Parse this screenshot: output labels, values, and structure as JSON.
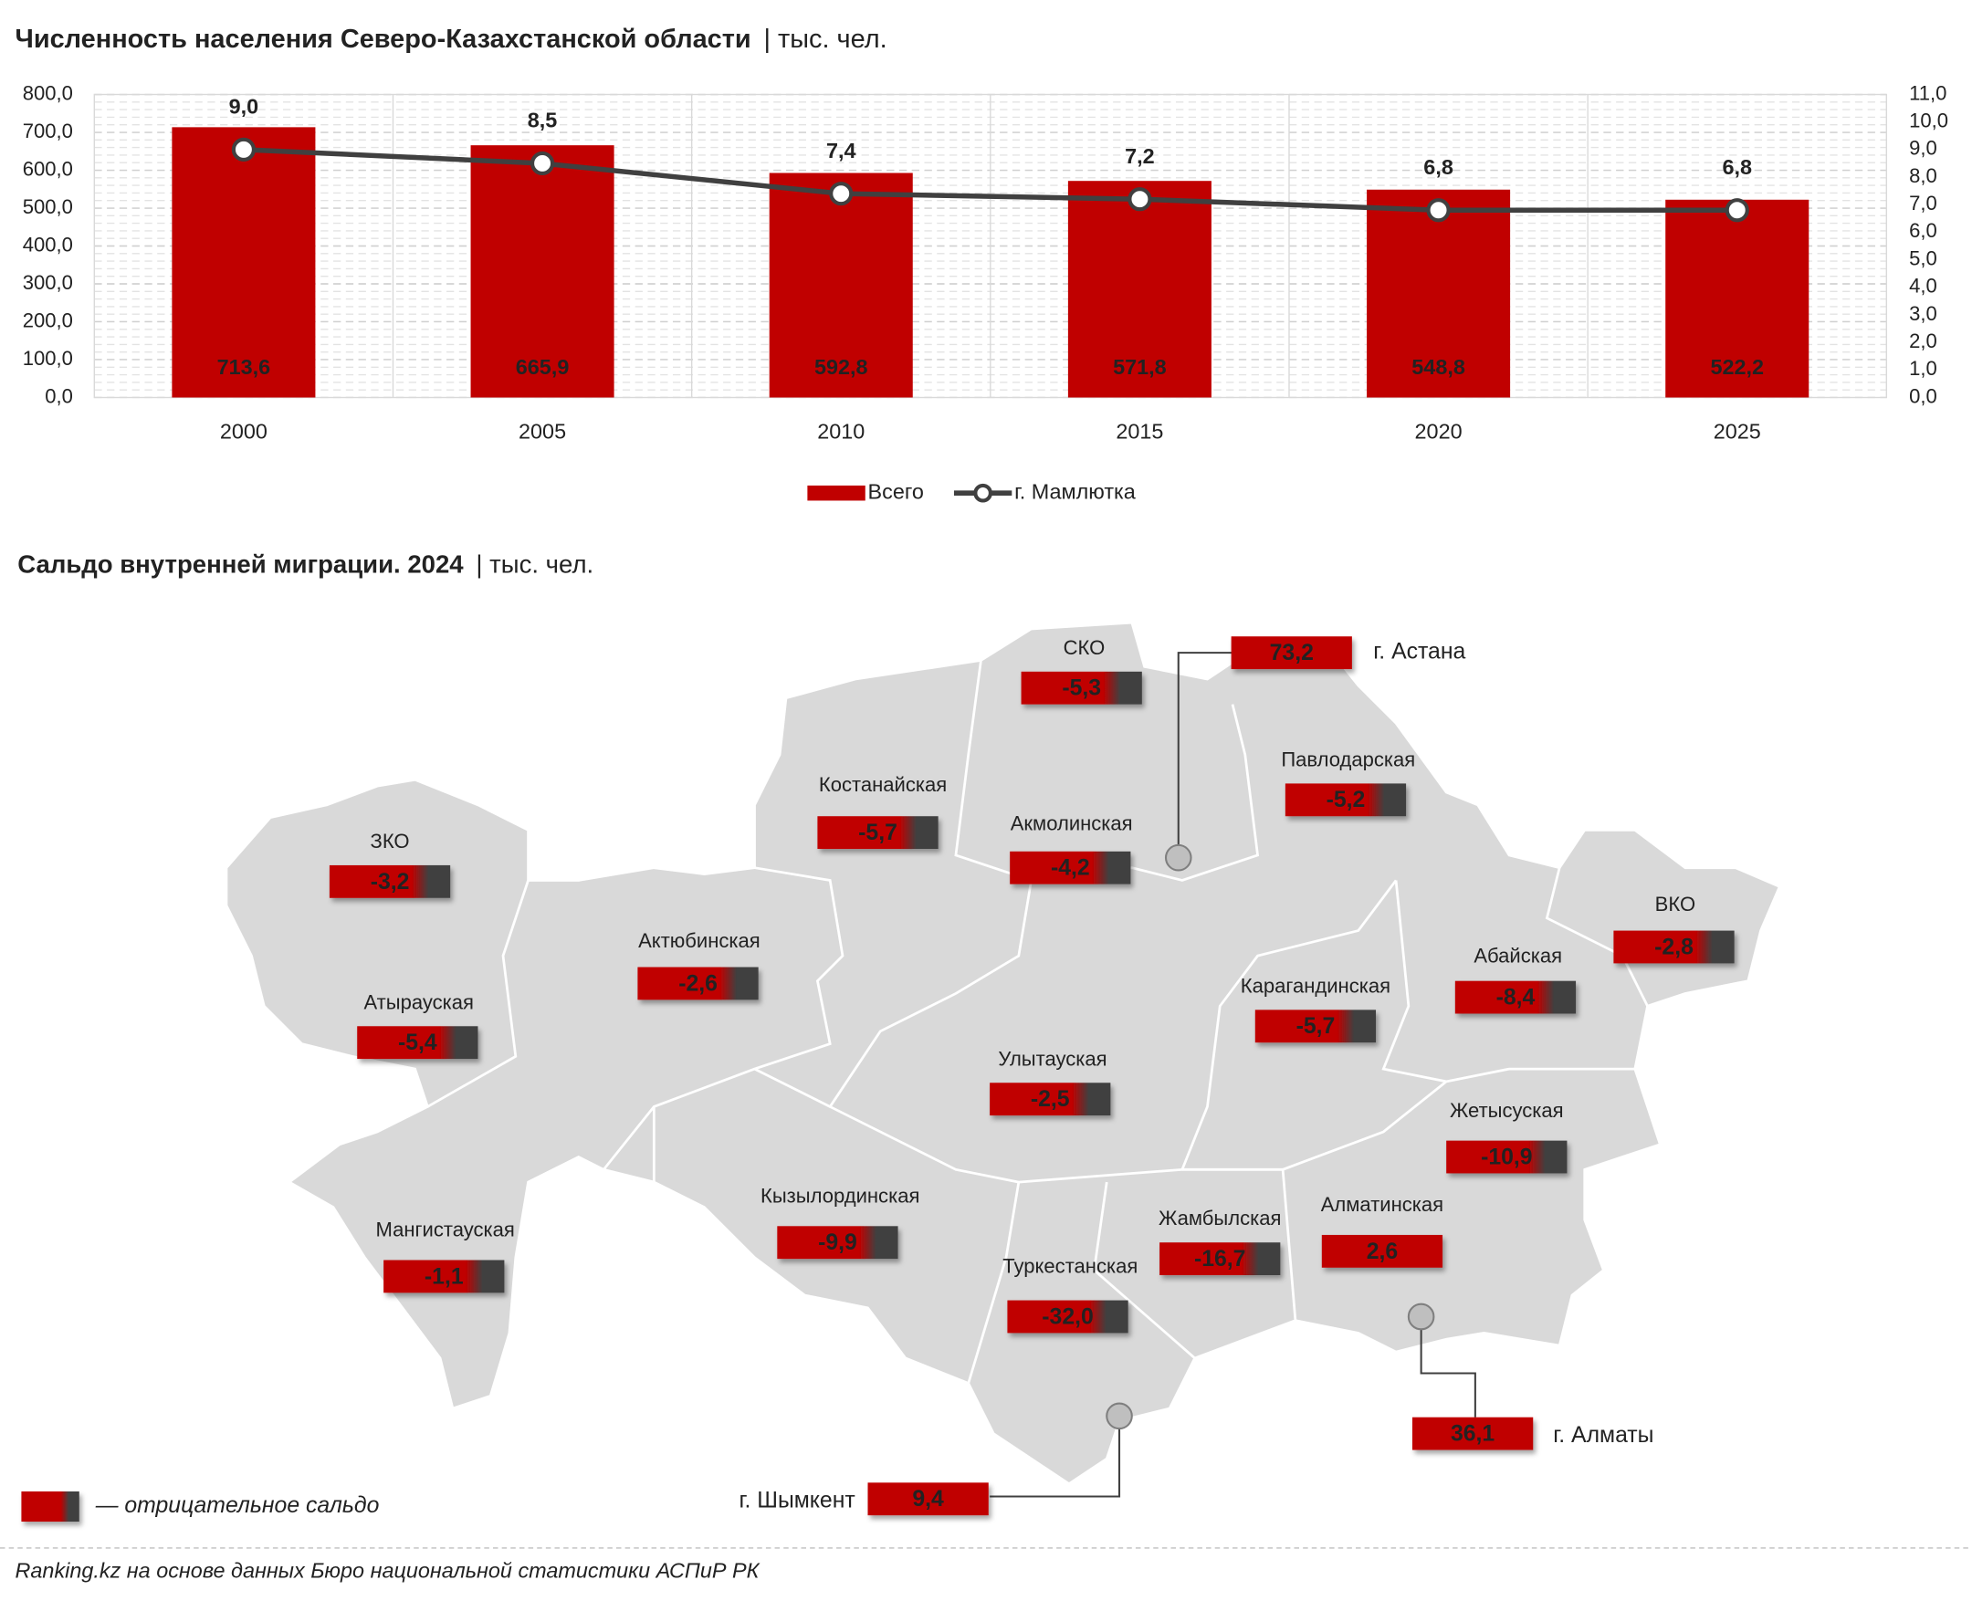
{
  "chart_data": [
    {
      "type": "bar",
      "title": "Численность населения Северо-Казахстанской области",
      "unit": "| тыс. чел.",
      "categories": [
        "2000",
        "2005",
        "2010",
        "2015",
        "2020",
        "2025"
      ],
      "series": [
        {
          "name": "Всего",
          "type": "bar",
          "color": "#c00000",
          "values": [
            713.6,
            665.9,
            592.8,
            571.8,
            548.8,
            522.2
          ],
          "value_labels": [
            "713,6",
            "665,9",
            "592,8",
            "571,8",
            "548,8",
            "522,2"
          ]
        },
        {
          "name": "г. Мамлютка",
          "type": "line",
          "axis": "y2",
          "color": "#404040",
          "values": [
            9.0,
            8.5,
            7.4,
            7.2,
            6.8,
            6.8
          ],
          "value_labels": [
            "9,0",
            "8,5",
            "7,4",
            "7,2",
            "6,8",
            "6,8"
          ]
        }
      ],
      "ylim": [
        0,
        800
      ],
      "yticks": [
        {
          "value": 0,
          "label": "0,0"
        },
        {
          "value": 100,
          "label": "100,0"
        },
        {
          "value": 200,
          "label": "200,0"
        },
        {
          "value": 300,
          "label": "300,0"
        },
        {
          "value": 400,
          "label": "400,0"
        },
        {
          "value": 500,
          "label": "500,0"
        },
        {
          "value": 600,
          "label": "600,0"
        },
        {
          "value": 700,
          "label": "700,0"
        },
        {
          "value": 800,
          "label": "800,0"
        }
      ],
      "y2lim": [
        0,
        11
      ],
      "y2ticks": [
        {
          "value": 0,
          "label": "0,0"
        },
        {
          "value": 1,
          "label": "1,0"
        },
        {
          "value": 2,
          "label": "2,0"
        },
        {
          "value": 3,
          "label": "3,0"
        },
        {
          "value": 4,
          "label": "4,0"
        },
        {
          "value": 5,
          "label": "5,0"
        },
        {
          "value": 6,
          "label": "6,0"
        },
        {
          "value": 7,
          "label": "7,0"
        },
        {
          "value": 8,
          "label": "8,0"
        },
        {
          "value": 9,
          "label": "9,0"
        },
        {
          "value": 10,
          "label": "10,0"
        },
        {
          "value": 11,
          "label": "11,0"
        }
      ],
      "grid": true,
      "legend": "bottom"
    },
    {
      "type": "map",
      "title": "Сальдо внутренней миграции. 2024",
      "unit": "| тыс. чел.",
      "regions": [
        {
          "name": "СКО",
          "value": -5.3,
          "value_label": "-5,3"
        },
        {
          "name": "Костанайская",
          "value": -5.7,
          "value_label": "-5,7"
        },
        {
          "name": "Акмолинская",
          "value": -4.2,
          "value_label": "-4,2"
        },
        {
          "name": "Павлодарская",
          "value": -5.2,
          "value_label": "-5,2"
        },
        {
          "name": "ЗКО",
          "value": -3.2,
          "value_label": "-3,2"
        },
        {
          "name": "Актюбинская",
          "value": -2.6,
          "value_label": "-2,6"
        },
        {
          "name": "Атырауская",
          "value": -5.4,
          "value_label": "-5,4"
        },
        {
          "name": "Карагандинская",
          "value": -5.7,
          "value_label": "-5,7"
        },
        {
          "name": "Абайская",
          "value": -8.4,
          "value_label": "-8,4"
        },
        {
          "name": "ВКО",
          "value": -2.8,
          "value_label": "-2,8"
        },
        {
          "name": "Улытауская",
          "value": -2.5,
          "value_label": "-2,5"
        },
        {
          "name": "Жетысуская",
          "value": -10.9,
          "value_label": "-10,9"
        },
        {
          "name": "Кызылординская",
          "value": -9.9,
          "value_label": "-9,9"
        },
        {
          "name": "Мангистауская",
          "value": -1.1,
          "value_label": "-1,1"
        },
        {
          "name": "Жамбылская",
          "value": -16.7,
          "value_label": "-16,7"
        },
        {
          "name": "Алматинская",
          "value": 2.6,
          "value_label": "2,6"
        },
        {
          "name": "Туркестанская",
          "value": -32.0,
          "value_label": "-32,0"
        },
        {
          "name": "г. Астана",
          "value": 73.2,
          "value_label": "73,2"
        },
        {
          "name": "г. Алматы",
          "value": 36.1,
          "value_label": "36,1"
        },
        {
          "name": "г. Шымкент",
          "value": 9.4,
          "value_label": "9,4"
        }
      ],
      "legend_note": "— отрицательное сальдо"
    }
  ],
  "source": "Ranking.kz на основе данных Бюро национальной статистики АСПиР РК"
}
